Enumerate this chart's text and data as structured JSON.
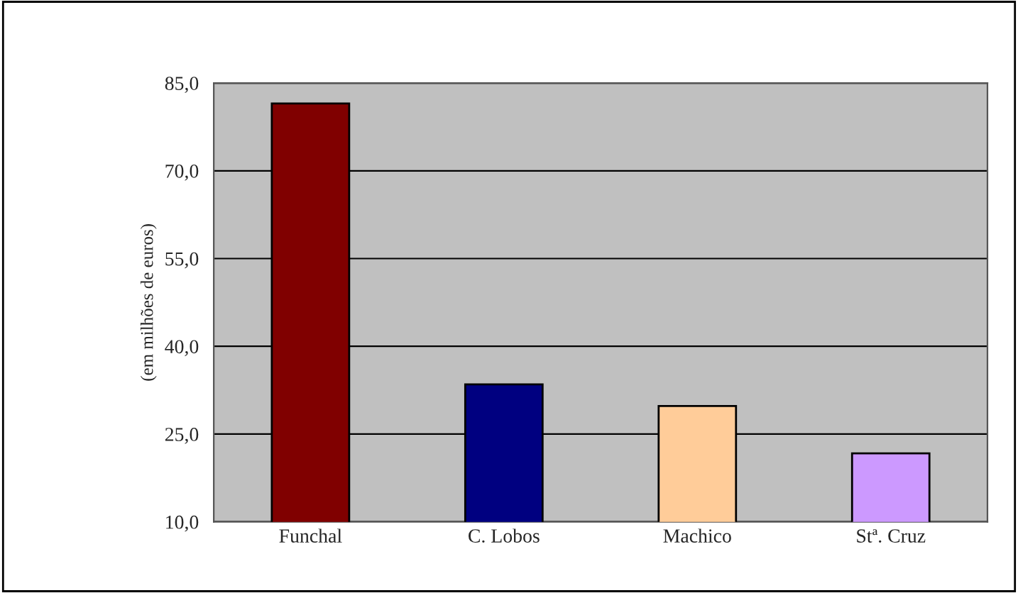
{
  "chart_data": {
    "type": "bar",
    "ylabel": "(em milhões de euros)",
    "categories": [
      "Funchal",
      "C. Lobos",
      "Machico",
      "Stª. Cruz"
    ],
    "values": [
      81.5,
      33.5,
      29.8,
      21.7
    ],
    "colors": [
      "#800000",
      "#000080",
      "#ffcc99",
      "#cc99ff"
    ],
    "ylim": [
      10,
      85
    ],
    "yticks": [
      {
        "value": 10,
        "label": "10,0"
      },
      {
        "value": 25,
        "label": "25,0"
      },
      {
        "value": 40,
        "label": "40,0"
      },
      {
        "value": 55,
        "label": "55,0"
      },
      {
        "value": 70,
        "label": "70,0"
      },
      {
        "value": 85,
        "label": "85,0"
      }
    ],
    "grid": "y"
  }
}
